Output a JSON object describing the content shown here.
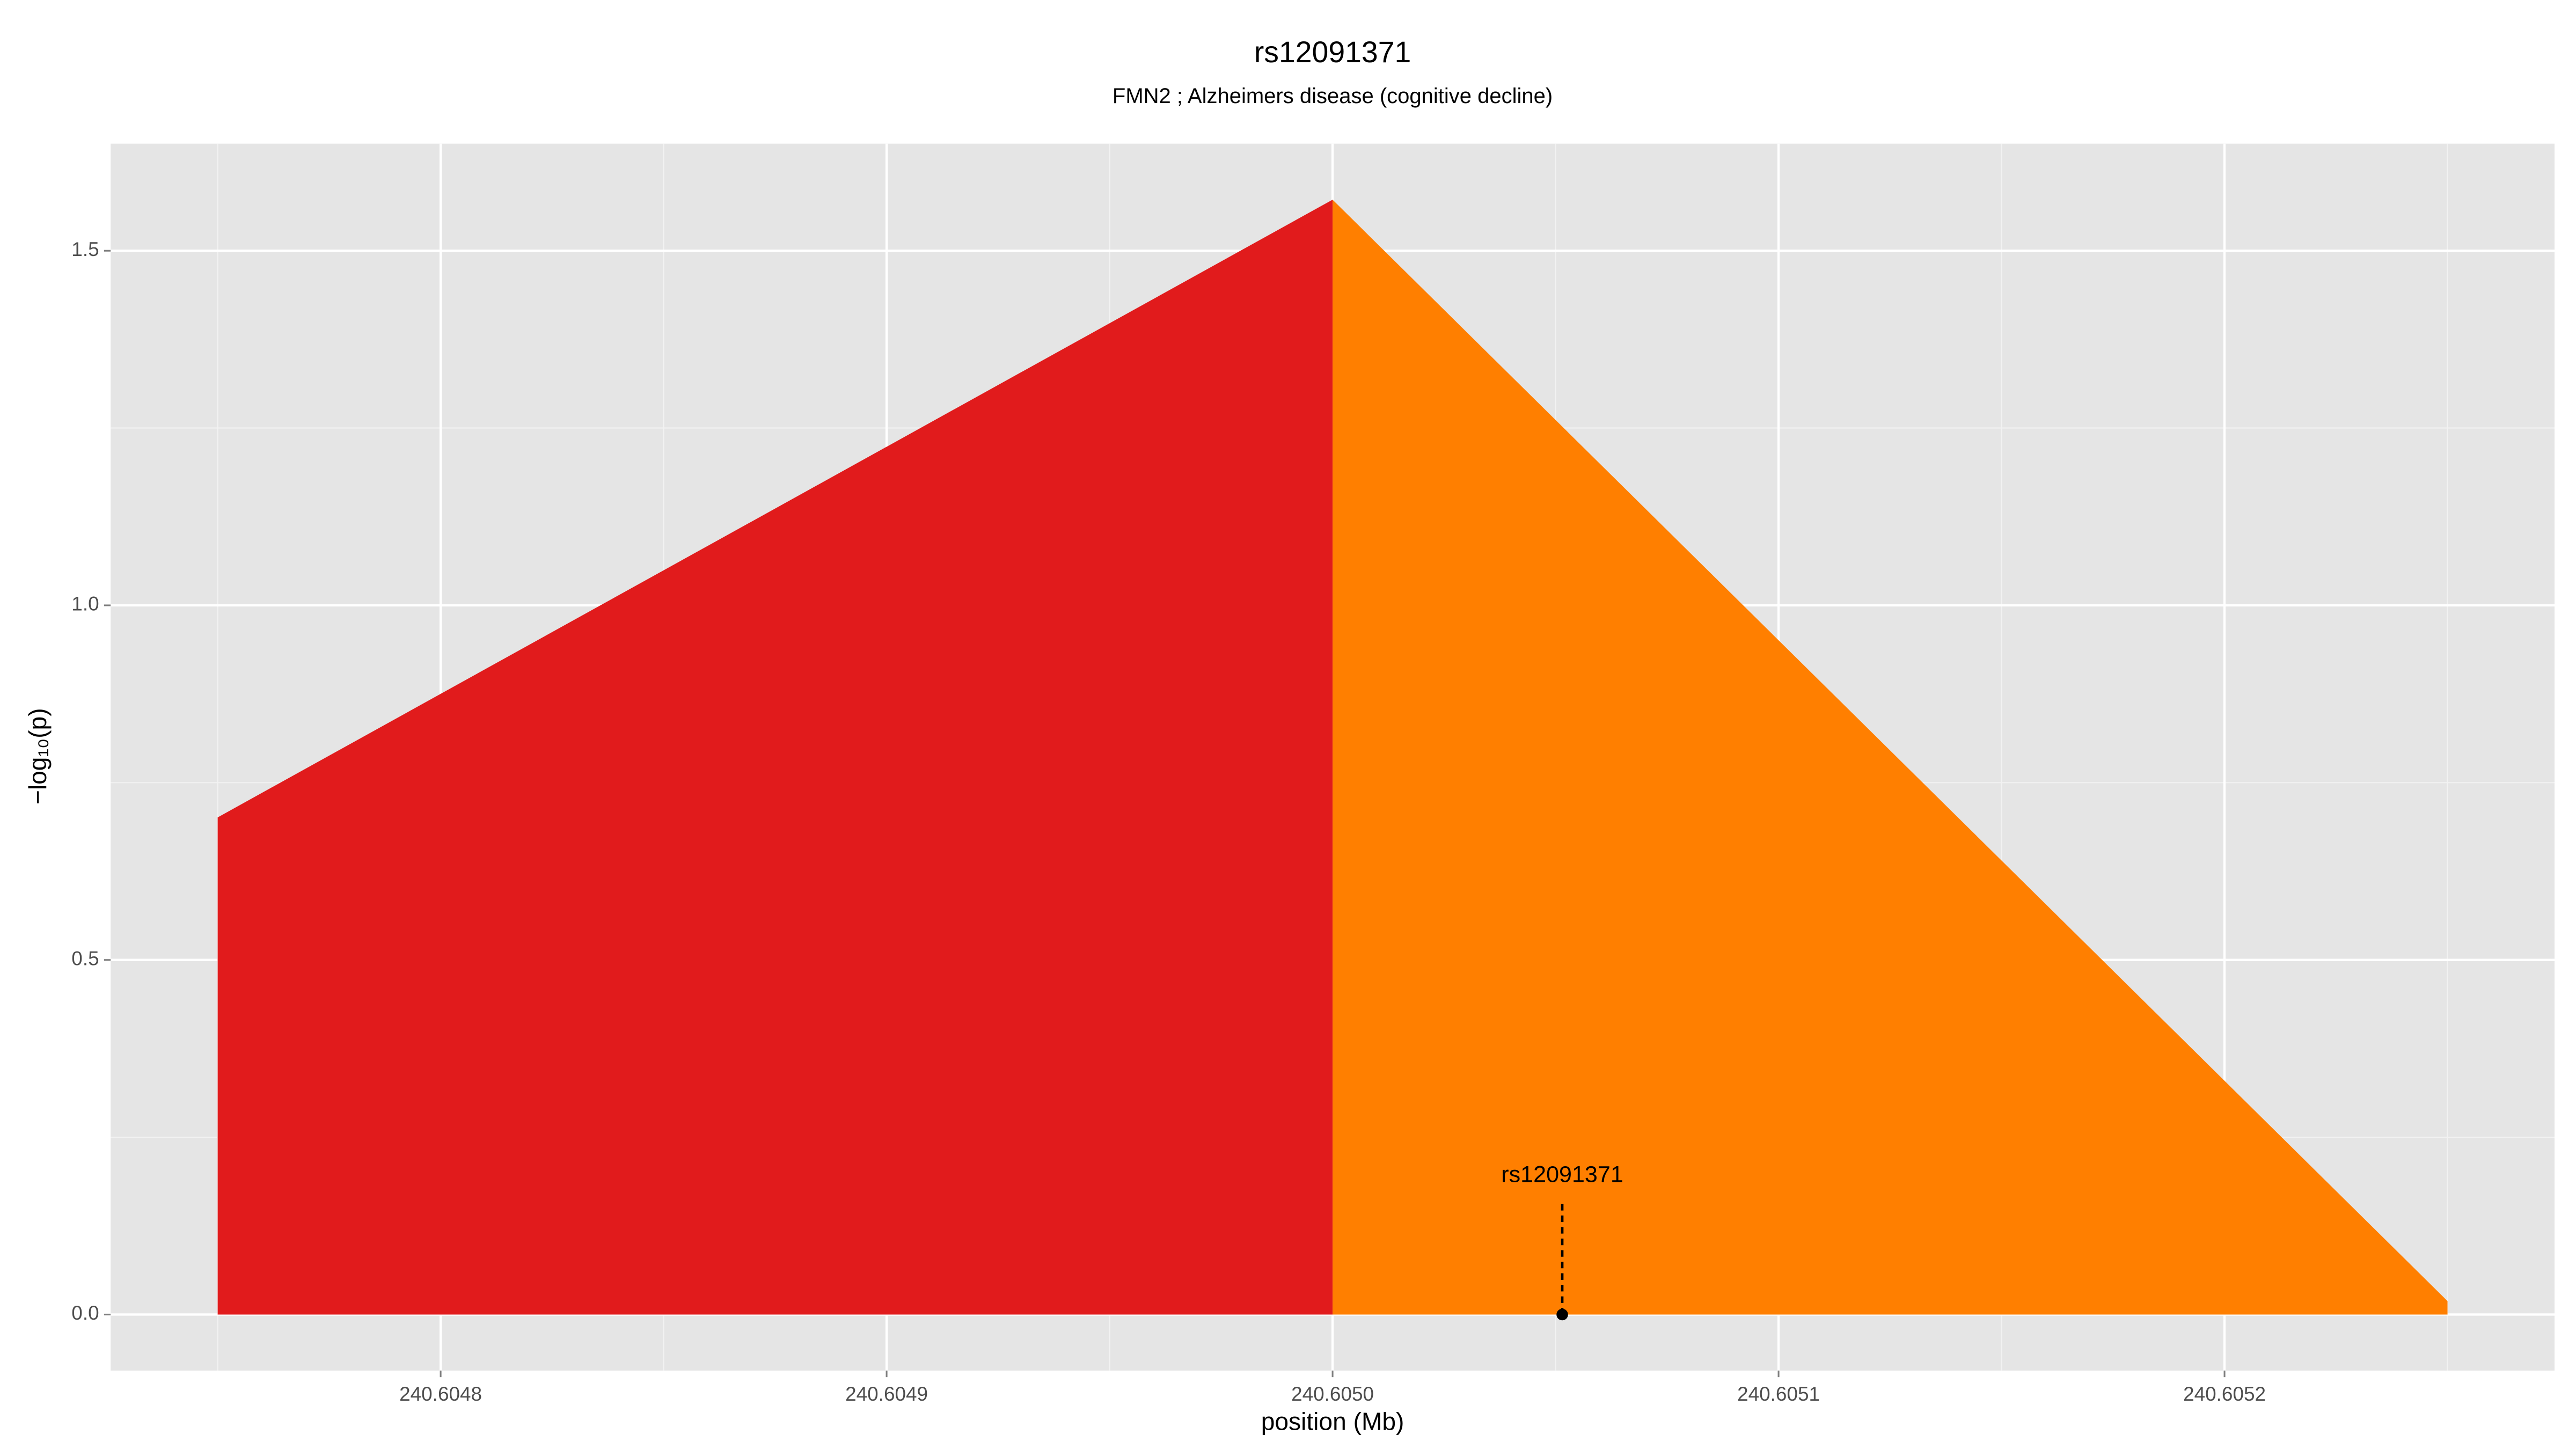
{
  "chart_data": {
    "type": "area",
    "title": "rs12091371",
    "subtitle": "FMN2 ; Alzheimers disease (cognitive decline)",
    "xlabel": "position (Mb)",
    "ylabel": "−log₁₀(p)",
    "series": [
      {
        "color": "#e11b1c",
        "x": [
          240.60475,
          240.605
        ],
        "values": [
          0.701,
          1.572
        ]
      },
      {
        "color": "#ff7f00",
        "x": [
          240.605,
          240.60525
        ],
        "values": [
          1.572,
          0.019
        ]
      }
    ],
    "annotations": [
      {
        "label": "rs12091371",
        "x": 240.6050515,
        "y": 0
      }
    ],
    "xlim": [
      240.604726,
      240.605274
    ],
    "ylim": [
      -0.079,
      1.651
    ],
    "xticks": [
      240.6048,
      240.6049,
      {
        "value": 240.605,
        "label": "240.6050"
      },
      240.6051,
      240.6052
    ],
    "yticks": [
      {
        "value": 0,
        "label": "0.0"
      },
      0.5,
      {
        "value": 1,
        "label": "1.0"
      },
      1.5
    ],
    "grid": true
  }
}
